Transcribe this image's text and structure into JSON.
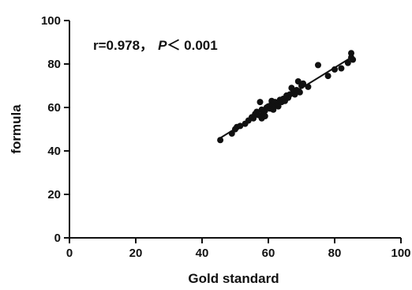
{
  "chart_data": {
    "type": "scatter",
    "title": "",
    "xlabel": "Gold standard",
    "ylabel": "formula",
    "xlim": [
      0,
      100
    ],
    "ylim": [
      0,
      100
    ],
    "xticks": [
      0,
      20,
      40,
      60,
      80,
      100
    ],
    "yticks": [
      0,
      20,
      40,
      60,
      80,
      100
    ],
    "xtick_labels": [
      "0",
      "20",
      "40",
      "60",
      "80",
      "100"
    ],
    "ytick_labels": [
      "0",
      "20",
      "40",
      "60",
      "80",
      "100"
    ],
    "grid": false,
    "annotation": {
      "r_text": "r=0.978，",
      "p_symbol": "P",
      "p_text": "＜ 0.001"
    },
    "fit_line": {
      "x": [
        45,
        85
      ],
      "y": [
        45.5,
        83
      ]
    },
    "series": [
      {
        "points": [
          [
            45.5,
            45
          ],
          [
            49,
            48
          ],
          [
            50,
            50
          ],
          [
            50.5,
            51
          ],
          [
            51.5,
            51.5
          ],
          [
            53,
            52.5
          ],
          [
            54,
            54
          ],
          [
            55,
            55.5
          ],
          [
            55.5,
            55
          ],
          [
            56,
            57
          ],
          [
            56.5,
            58
          ],
          [
            57,
            56.5
          ],
          [
            57.5,
            62.5
          ],
          [
            58,
            59
          ],
          [
            58,
            55
          ],
          [
            58.5,
            57.5
          ],
          [
            59,
            58.5
          ],
          [
            59,
            56
          ],
          [
            59.5,
            60
          ],
          [
            60,
            60.5
          ],
          [
            60.5,
            59.5
          ],
          [
            61,
            61.5
          ],
          [
            61,
            63
          ],
          [
            61.5,
            59
          ],
          [
            62,
            62.5
          ],
          [
            62.5,
            61
          ],
          [
            63,
            60.5
          ],
          [
            63,
            62
          ],
          [
            63.5,
            63.5
          ],
          [
            64,
            62.5
          ],
          [
            64.5,
            64
          ],
          [
            65,
            63
          ],
          [
            65.5,
            65.5
          ],
          [
            66,
            64.5
          ],
          [
            66.5,
            66
          ],
          [
            67,
            69
          ],
          [
            67.5,
            67
          ],
          [
            68,
            66
          ],
          [
            68.5,
            68
          ],
          [
            69,
            72
          ],
          [
            69.5,
            67
          ],
          [
            70,
            70
          ],
          [
            70.5,
            71
          ],
          [
            72,
            69.5
          ],
          [
            75,
            79.5
          ],
          [
            78,
            74.5
          ],
          [
            80,
            77.5
          ],
          [
            82,
            78
          ],
          [
            84,
            80.5
          ],
          [
            85,
            85
          ],
          [
            85,
            83
          ],
          [
            85.5,
            82
          ]
        ]
      }
    ]
  }
}
